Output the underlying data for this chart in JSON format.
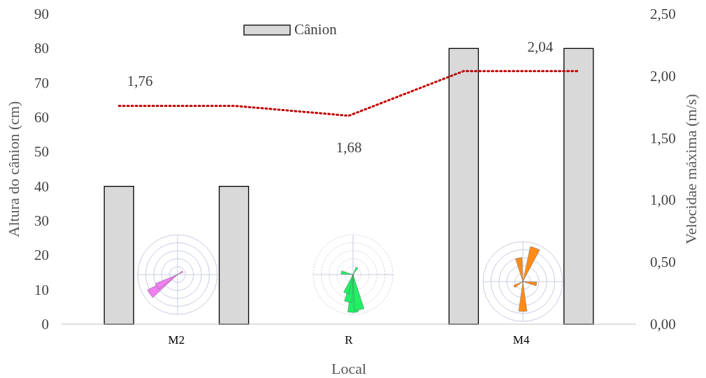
{
  "chart_data": {
    "type": "bar",
    "xlabel": "Local",
    "ylabel": "Altura do cânion (cm)",
    "y2label": "Velocidae máxima (m/s)",
    "categories": [
      null,
      null,
      "R",
      null,
      null
    ],
    "annotations": [
      "M2",
      "M4"
    ],
    "ylim": [
      0,
      90
    ],
    "yticks": [
      0,
      10,
      20,
      30,
      40,
      50,
      60,
      70,
      80,
      90
    ],
    "y2lim": [
      0,
      2.5
    ],
    "y2ticks": [
      {
        "value": 0,
        "label": "0,00"
      },
      {
        "value": 0.5,
        "label": "0,50"
      },
      {
        "value": 1,
        "label": "1,00"
      },
      {
        "value": 1.5,
        "label": "1,50"
      },
      {
        "value": 2,
        "label": "2,00"
      },
      {
        "value": 2.5,
        "label": "2,50"
      }
    ],
    "legend": "top",
    "grid": false,
    "series": [
      {
        "name": "Cânion",
        "color": "#d9d9d9",
        "values": [
          40,
          40,
          null,
          80,
          80
        ]
      },
      {
        "type": "line",
        "axis": "y2",
        "color": "#c00000",
        "line_style": "dotted",
        "marker": "none",
        "values": [
          1.76,
          1.76,
          1.68,
          2.04,
          2.04
        ],
        "value_labels": [
          "1,76",
          null,
          "1,68",
          null,
          "2,04"
        ]
      }
    ]
  }
}
